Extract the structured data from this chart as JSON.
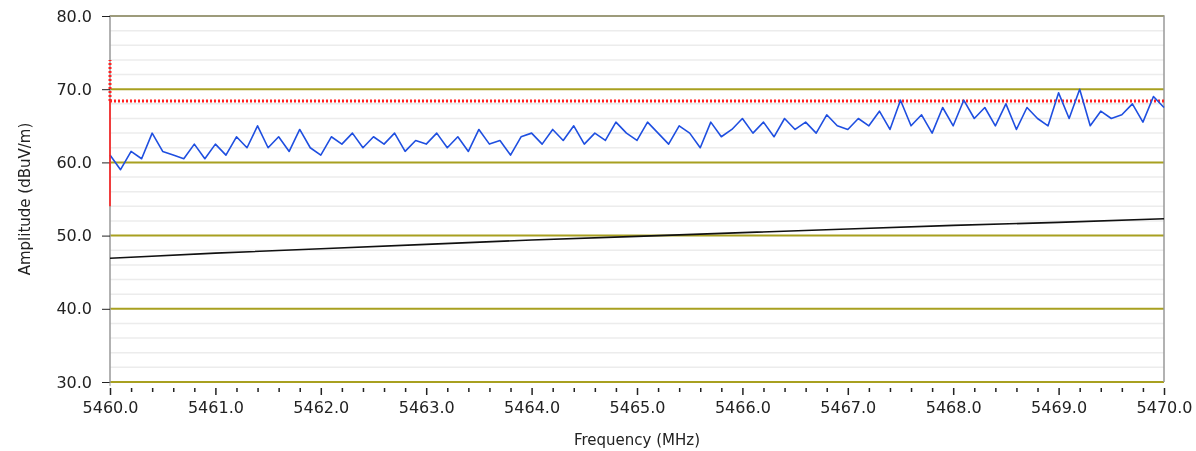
{
  "chart_data": {
    "type": "line",
    "xlabel": "Frequency (MHz)",
    "ylabel": "Amplitude (dBuV/m)",
    "xlim": [
      5460,
      5470
    ],
    "ylim": [
      30,
      80
    ],
    "xticks": [
      {
        "value": 5460,
        "label": "5460.0"
      },
      {
        "value": 5460.2,
        "label": null
      },
      {
        "value": 5460.4,
        "label": null
      },
      {
        "value": 5460.6,
        "label": null
      },
      {
        "value": 5460.8,
        "label": null
      },
      {
        "value": 5461,
        "label": "5461.0"
      },
      {
        "value": 5461.2,
        "label": null
      },
      {
        "value": 5461.4,
        "label": null
      },
      {
        "value": 5461.6,
        "label": null
      },
      {
        "value": 5461.8,
        "label": null
      },
      {
        "value": 5462,
        "label": "5462.0"
      },
      {
        "value": 5462.2,
        "label": null
      },
      {
        "value": 5462.4,
        "label": null
      },
      {
        "value": 5462.6,
        "label": null
      },
      {
        "value": 5462.8,
        "label": null
      },
      {
        "value": 5463,
        "label": "5463.0"
      },
      {
        "value": 5463.2,
        "label": null
      },
      {
        "value": 5463.4,
        "label": null
      },
      {
        "value": 5463.6,
        "label": null
      },
      {
        "value": 5463.8,
        "label": null
      },
      {
        "value": 5464,
        "label": "5464.0"
      },
      {
        "value": 5464.2,
        "label": null
      },
      {
        "value": 5464.4,
        "label": null
      },
      {
        "value": 5464.6,
        "label": null
      },
      {
        "value": 5464.8,
        "label": null
      },
      {
        "value": 5465,
        "label": "5465.0"
      },
      {
        "value": 5465.2,
        "label": null
      },
      {
        "value": 5465.4,
        "label": null
      },
      {
        "value": 5465.6,
        "label": null
      },
      {
        "value": 5465.8,
        "label": null
      },
      {
        "value": 5466,
        "label": "5466.0"
      },
      {
        "value": 5466.2,
        "label": null
      },
      {
        "value": 5466.4,
        "label": null
      },
      {
        "value": 5466.6,
        "label": null
      },
      {
        "value": 5466.8,
        "label": null
      },
      {
        "value": 5467,
        "label": "5467.0"
      },
      {
        "value": 5467.2,
        "label": null
      },
      {
        "value": 5467.4,
        "label": null
      },
      {
        "value": 5467.6,
        "label": null
      },
      {
        "value": 5467.8,
        "label": null
      },
      {
        "value": 5468,
        "label": "5468.0"
      },
      {
        "value": 5468.2,
        "label": null
      },
      {
        "value": 5468.4,
        "label": null
      },
      {
        "value": 5468.6,
        "label": null
      },
      {
        "value": 5468.8,
        "label": null
      },
      {
        "value": 5469,
        "label": "5469.0"
      },
      {
        "value": 5469.2,
        "label": null
      },
      {
        "value": 5469.4,
        "label": null
      },
      {
        "value": 5469.6,
        "label": null
      },
      {
        "value": 5469.8,
        "label": null
      },
      {
        "value": 5470,
        "label": "5470.0"
      }
    ],
    "yticks": [
      {
        "value": 30,
        "label": "30.0"
      },
      {
        "value": 32,
        "label": null
      },
      {
        "value": 34,
        "label": null
      },
      {
        "value": 36,
        "label": null
      },
      {
        "value": 38,
        "label": null
      },
      {
        "value": 40,
        "label": "40.0"
      },
      {
        "value": 42,
        "label": null
      },
      {
        "value": 44,
        "label": null
      },
      {
        "value": 46,
        "label": null
      },
      {
        "value": 48,
        "label": null
      },
      {
        "value": 50,
        "label": "50.0"
      },
      {
        "value": 52,
        "label": null
      },
      {
        "value": 54,
        "label": null
      },
      {
        "value": 56,
        "label": null
      },
      {
        "value": 58,
        "label": null
      },
      {
        "value": 60,
        "label": "60.0"
      },
      {
        "value": 62,
        "label": null
      },
      {
        "value": 64,
        "label": null
      },
      {
        "value": 66,
        "label": null
      },
      {
        "value": 68,
        "label": null
      },
      {
        "value": 70,
        "label": "70.0"
      },
      {
        "value": 72,
        "label": null
      },
      {
        "value": 74,
        "label": null
      },
      {
        "value": 76,
        "label": null
      },
      {
        "value": 78,
        "label": null
      },
      {
        "value": 80,
        "label": "80.0"
      }
    ],
    "grid": "y",
    "ref_lines": [
      {
        "axis": "y",
        "value": 68.4,
        "color": "#ff2020",
        "line_style": "dotted"
      }
    ],
    "series": [
      {
        "color": "#1f4fe0",
        "line_style": "solid",
        "x": [
          5460.0,
          5460.1,
          5460.2,
          5460.3,
          5460.4,
          5460.5,
          5460.6,
          5460.7,
          5460.8,
          5460.9,
          5461.0,
          5461.1,
          5461.2,
          5461.3,
          5461.4,
          5461.5,
          5461.6,
          5461.7,
          5461.8,
          5461.9,
          5462.0,
          5462.1,
          5462.2,
          5462.3,
          5462.4,
          5462.5,
          5462.6,
          5462.7,
          5462.8,
          5462.9,
          5463.0,
          5463.1,
          5463.2,
          5463.3,
          5463.4,
          5463.5,
          5463.6,
          5463.7,
          5463.8,
          5463.9,
          5464.0,
          5464.1,
          5464.2,
          5464.3,
          5464.4,
          5464.5,
          5464.6,
          5464.7,
          5464.8,
          5464.9,
          5465.0,
          5465.1,
          5465.2,
          5465.3,
          5465.4,
          5465.5,
          5465.6,
          5465.7,
          5465.8,
          5465.9,
          5466.0,
          5466.1,
          5466.2,
          5466.3,
          5466.4,
          5466.5,
          5466.6,
          5466.7,
          5466.8,
          5466.9,
          5467.0,
          5467.1,
          5467.2,
          5467.3,
          5467.4,
          5467.5,
          5467.6,
          5467.7,
          5467.8,
          5467.9,
          5468.0,
          5468.1,
          5468.2,
          5468.3,
          5468.4,
          5468.5,
          5468.6,
          5468.7,
          5468.8,
          5468.9,
          5469.0,
          5469.1,
          5469.2,
          5469.3,
          5469.4,
          5469.5,
          5469.6,
          5469.7,
          5469.8,
          5469.9,
          5470.0
        ],
        "values": [
          61.0,
          59.0,
          61.5,
          60.5,
          64.0,
          61.5,
          61.0,
          60.5,
          62.5,
          60.5,
          62.5,
          61.0,
          63.5,
          62.0,
          65.0,
          62.0,
          63.5,
          61.5,
          64.5,
          62.0,
          61.0,
          63.5,
          62.5,
          64.0,
          62.0,
          63.5,
          62.5,
          64.0,
          61.5,
          63.0,
          62.5,
          64.0,
          62.0,
          63.5,
          61.5,
          64.5,
          62.5,
          63.0,
          61.0,
          63.5,
          64.0,
          62.5,
          64.5,
          63.0,
          65.0,
          62.5,
          64.0,
          63.0,
          65.5,
          64.0,
          63.0,
          65.5,
          64.0,
          62.5,
          65.0,
          64.0,
          62.0,
          65.5,
          63.5,
          64.5,
          66.0,
          64.0,
          65.5,
          63.5,
          66.0,
          64.5,
          65.5,
          64.0,
          66.5,
          65.0,
          64.5,
          66.0,
          65.0,
          67.0,
          64.5,
          68.5,
          65.0,
          66.5,
          64.0,
          67.5,
          65.0,
          68.5,
          66.0,
          67.5,
          65.0,
          68.0,
          64.5,
          67.5,
          66.0,
          65.0,
          69.5,
          66.0,
          70.0,
          65.0,
          67.0,
          66.0,
          66.5,
          68.0,
          65.5,
          69.0,
          67.5
        ]
      },
      {
        "color": "#111111",
        "line_style": "solid",
        "x": [
          5460,
          5461,
          5462,
          5463,
          5464,
          5465,
          5466,
          5467,
          5468,
          5469,
          5470
        ],
        "values": [
          46.9,
          47.6,
          48.2,
          48.8,
          49.4,
          49.9,
          50.4,
          50.9,
          51.4,
          51.8,
          52.3
        ]
      },
      {
        "color": "#ff2020",
        "line_style": "solid",
        "x": [
          5460,
          5460
        ],
        "values": [
          54,
          68.4
        ]
      },
      {
        "color": "#ff2020",
        "line_style": "dotted",
        "x": [
          5460,
          5460
        ],
        "values": [
          68.4,
          74
        ]
      }
    ]
  }
}
